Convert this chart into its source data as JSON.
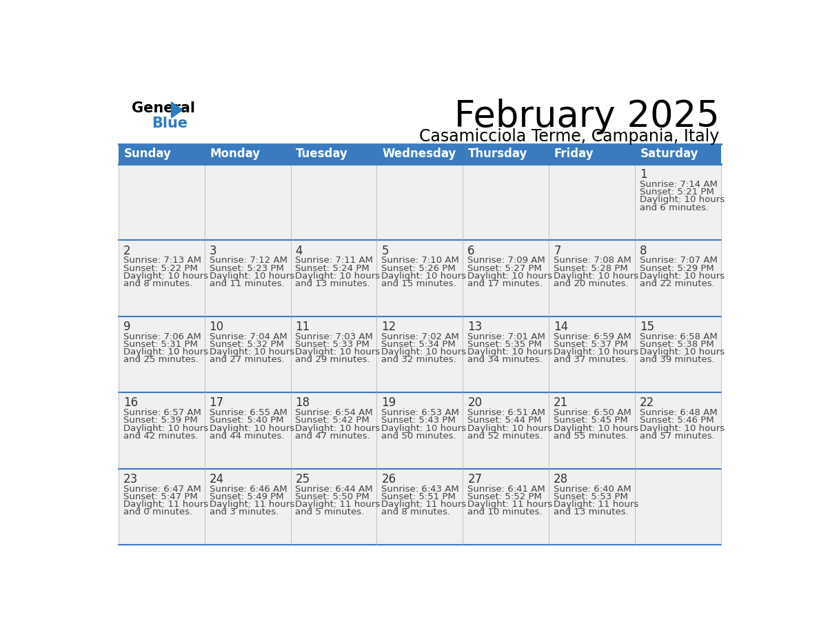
{
  "title": "February 2025",
  "subtitle": "Casamicciola Terme, Campania, Italy",
  "days_of_week": [
    "Sunday",
    "Monday",
    "Tuesday",
    "Wednesday",
    "Thursday",
    "Friday",
    "Saturday"
  ],
  "header_bg": "#3a7bbf",
  "header_text": "#ffffff",
  "row_bg": "#f0f0f0",
  "border_color": "#3a7bbf",
  "day_num_color": "#333333",
  "info_color": "#444444",
  "calendar_data": [
    [
      null,
      null,
      null,
      null,
      null,
      null,
      {
        "day": 1,
        "sunrise": "7:14 AM",
        "sunset": "5:21 PM",
        "daylight": "10 hours and 6 minutes"
      }
    ],
    [
      {
        "day": 2,
        "sunrise": "7:13 AM",
        "sunset": "5:22 PM",
        "daylight": "10 hours and 8 minutes"
      },
      {
        "day": 3,
        "sunrise": "7:12 AM",
        "sunset": "5:23 PM",
        "daylight": "10 hours and 11 minutes"
      },
      {
        "day": 4,
        "sunrise": "7:11 AM",
        "sunset": "5:24 PM",
        "daylight": "10 hours and 13 minutes"
      },
      {
        "day": 5,
        "sunrise": "7:10 AM",
        "sunset": "5:26 PM",
        "daylight": "10 hours and 15 minutes"
      },
      {
        "day": 6,
        "sunrise": "7:09 AM",
        "sunset": "5:27 PM",
        "daylight": "10 hours and 17 minutes"
      },
      {
        "day": 7,
        "sunrise": "7:08 AM",
        "sunset": "5:28 PM",
        "daylight": "10 hours and 20 minutes"
      },
      {
        "day": 8,
        "sunrise": "7:07 AM",
        "sunset": "5:29 PM",
        "daylight": "10 hours and 22 minutes"
      }
    ],
    [
      {
        "day": 9,
        "sunrise": "7:06 AM",
        "sunset": "5:31 PM",
        "daylight": "10 hours and 25 minutes"
      },
      {
        "day": 10,
        "sunrise": "7:04 AM",
        "sunset": "5:32 PM",
        "daylight": "10 hours and 27 minutes"
      },
      {
        "day": 11,
        "sunrise": "7:03 AM",
        "sunset": "5:33 PM",
        "daylight": "10 hours and 29 minutes"
      },
      {
        "day": 12,
        "sunrise": "7:02 AM",
        "sunset": "5:34 PM",
        "daylight": "10 hours and 32 minutes"
      },
      {
        "day": 13,
        "sunrise": "7:01 AM",
        "sunset": "5:35 PM",
        "daylight": "10 hours and 34 minutes"
      },
      {
        "day": 14,
        "sunrise": "6:59 AM",
        "sunset": "5:37 PM",
        "daylight": "10 hours and 37 minutes"
      },
      {
        "day": 15,
        "sunrise": "6:58 AM",
        "sunset": "5:38 PM",
        "daylight": "10 hours and 39 minutes"
      }
    ],
    [
      {
        "day": 16,
        "sunrise": "6:57 AM",
        "sunset": "5:39 PM",
        "daylight": "10 hours and 42 minutes"
      },
      {
        "day": 17,
        "sunrise": "6:55 AM",
        "sunset": "5:40 PM",
        "daylight": "10 hours and 44 minutes"
      },
      {
        "day": 18,
        "sunrise": "6:54 AM",
        "sunset": "5:42 PM",
        "daylight": "10 hours and 47 minutes"
      },
      {
        "day": 19,
        "sunrise": "6:53 AM",
        "sunset": "5:43 PM",
        "daylight": "10 hours and 50 minutes"
      },
      {
        "day": 20,
        "sunrise": "6:51 AM",
        "sunset": "5:44 PM",
        "daylight": "10 hours and 52 minutes"
      },
      {
        "day": 21,
        "sunrise": "6:50 AM",
        "sunset": "5:45 PM",
        "daylight": "10 hours and 55 minutes"
      },
      {
        "day": 22,
        "sunrise": "6:48 AM",
        "sunset": "5:46 PM",
        "daylight": "10 hours and 57 minutes"
      }
    ],
    [
      {
        "day": 23,
        "sunrise": "6:47 AM",
        "sunset": "5:47 PM",
        "daylight": "11 hours and 0 minutes"
      },
      {
        "day": 24,
        "sunrise": "6:46 AM",
        "sunset": "5:49 PM",
        "daylight": "11 hours and 3 minutes"
      },
      {
        "day": 25,
        "sunrise": "6:44 AM",
        "sunset": "5:50 PM",
        "daylight": "11 hours and 5 minutes"
      },
      {
        "day": 26,
        "sunrise": "6:43 AM",
        "sunset": "5:51 PM",
        "daylight": "11 hours and 8 minutes"
      },
      {
        "day": 27,
        "sunrise": "6:41 AM",
        "sunset": "5:52 PM",
        "daylight": "11 hours and 10 minutes"
      },
      {
        "day": 28,
        "sunrise": "6:40 AM",
        "sunset": "5:53 PM",
        "daylight": "11 hours and 13 minutes"
      },
      null
    ]
  ],
  "title_fontsize": 38,
  "subtitle_fontsize": 17,
  "header_fontsize": 12,
  "day_num_fontsize": 12,
  "info_fontsize": 9.5,
  "logo_general_fontsize": 15,
  "logo_blue_fontsize": 15
}
